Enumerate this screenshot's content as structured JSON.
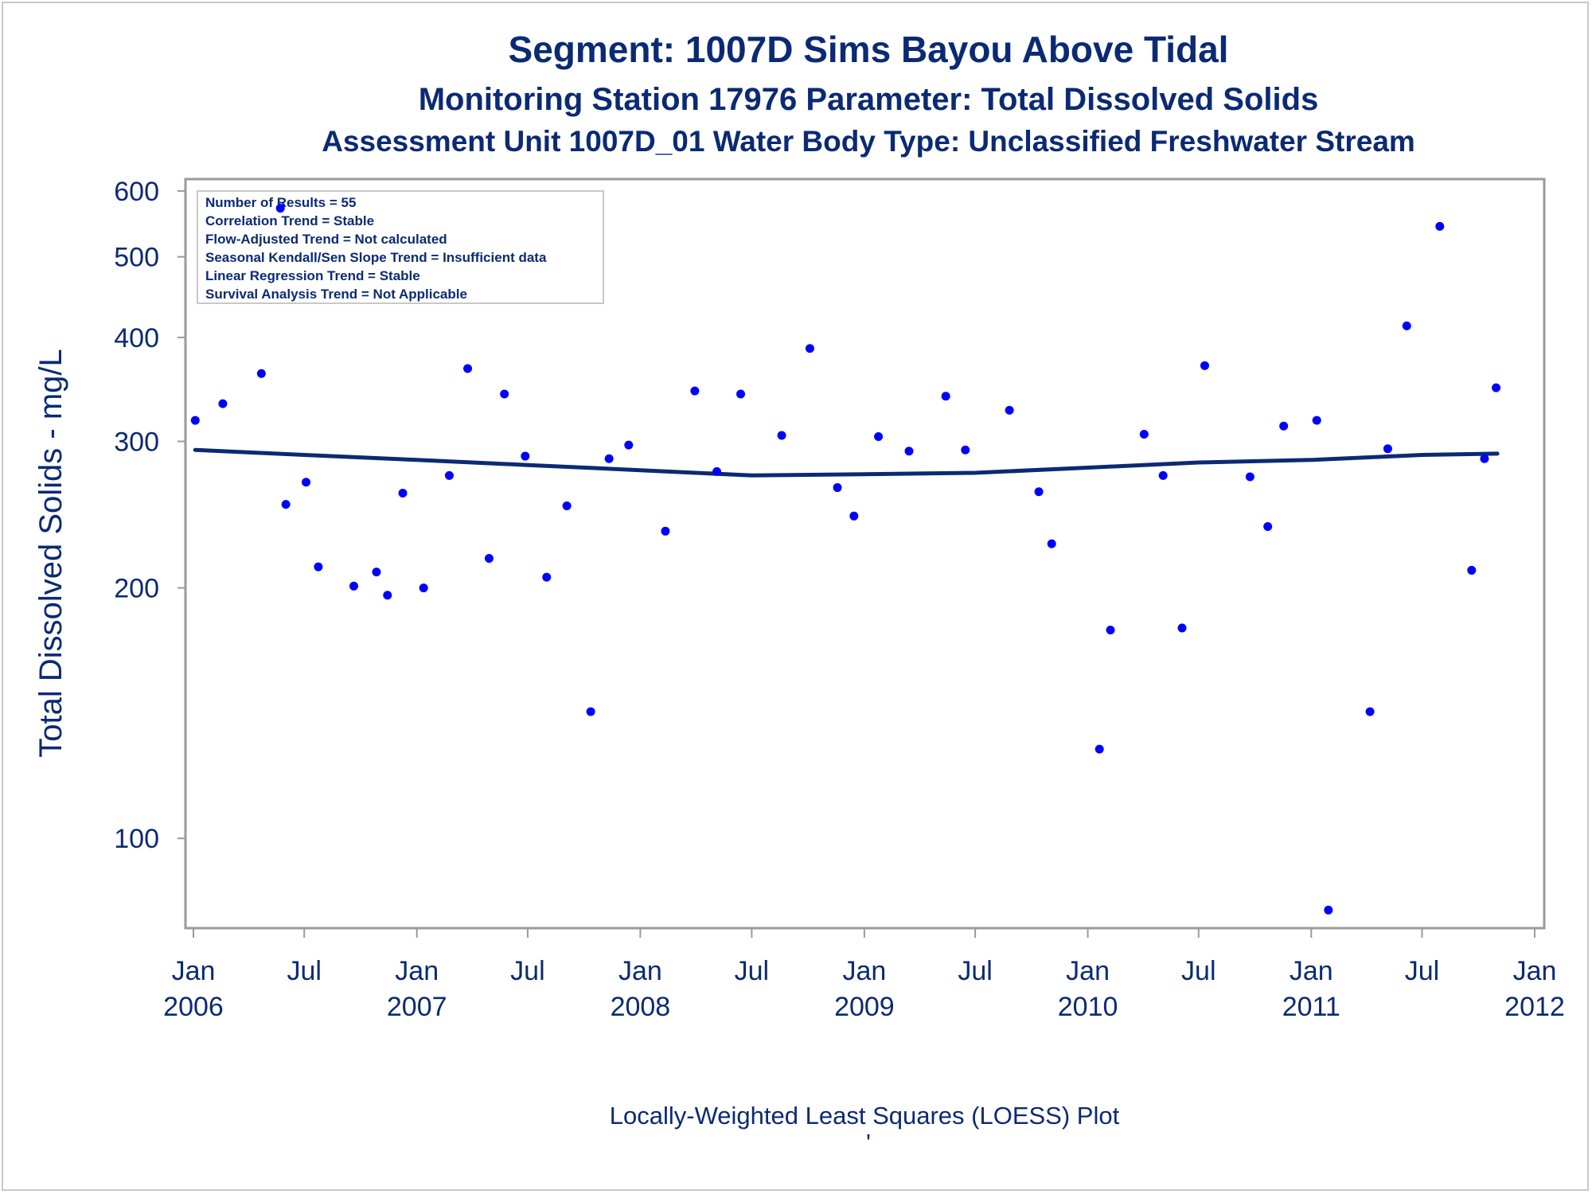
{
  "chart_data": {
    "type": "scatter",
    "title": "Segment: 1007D  Sims Bayou Above Tidal",
    "subtitle": "Monitoring Station 17976 Parameter: Total Dissolved Solids",
    "subtitle2": "Assessment Unit 1007D_01   Water Body Type: Unclassified Freshwater Stream",
    "xlabel": "",
    "ylabel": "Total Dissolved Solids - mg/L",
    "footnote": "Locally-Weighted Least Squares (LOESS) Plot",
    "footnote_mark": "'",
    "y_scale": "log",
    "ylim": [
      78,
      620
    ],
    "xlim": [
      "2006-01-01",
      "2012-01-01"
    ],
    "y_ticks": [
      100,
      200,
      300,
      400,
      500,
      600
    ],
    "x_ticks": [
      {
        "date": "2006-01-01",
        "line1": "Jan",
        "line2": "2006"
      },
      {
        "date": "2006-07-01",
        "line1": "Jul",
        "line2": ""
      },
      {
        "date": "2007-01-01",
        "line1": "Jan",
        "line2": "2007"
      },
      {
        "date": "2007-07-01",
        "line1": "Jul",
        "line2": ""
      },
      {
        "date": "2008-01-01",
        "line1": "Jan",
        "line2": "2008"
      },
      {
        "date": "2008-07-01",
        "line1": "Jul",
        "line2": ""
      },
      {
        "date": "2009-01-01",
        "line1": "Jan",
        "line2": "2009"
      },
      {
        "date": "2009-07-01",
        "line1": "Jul",
        "line2": ""
      },
      {
        "date": "2010-01-01",
        "line1": "Jan",
        "line2": "2010"
      },
      {
        "date": "2010-07-01",
        "line1": "Jul",
        "line2": ""
      },
      {
        "date": "2011-01-01",
        "line1": "Jan",
        "line2": "2011"
      },
      {
        "date": "2011-07-01",
        "line1": "Jul",
        "line2": ""
      },
      {
        "date": "2012-01-01",
        "line1": "Jan",
        "line2": "2012"
      }
    ],
    "info_box": [
      "Number of Results = 55",
      "Correlation Trend = Stable",
      "Flow-Adjusted Trend = Not calculated",
      "Seasonal Kendall/Sen Slope Trend = Insufficient data",
      "Linear Regression Trend = Stable",
      "Survival Analysis Trend = Not Applicable"
    ],
    "colors": {
      "points": "#0000ff",
      "loess": "#0b2a74",
      "text": "#0b2a74",
      "axis": "#9a9a9a"
    },
    "points": [
      {
        "x": "2006-01-04",
        "y": 318
      },
      {
        "x": "2006-02-18",
        "y": 333
      },
      {
        "x": "2006-04-22",
        "y": 362
      },
      {
        "x": "2006-05-23",
        "y": 572
      },
      {
        "x": "2006-06-01",
        "y": 252
      },
      {
        "x": "2006-07-04",
        "y": 268
      },
      {
        "x": "2006-07-24",
        "y": 212
      },
      {
        "x": "2006-09-20",
        "y": 201
      },
      {
        "x": "2006-10-27",
        "y": 209
      },
      {
        "x": "2006-11-14",
        "y": 196
      },
      {
        "x": "2006-12-09",
        "y": 260
      },
      {
        "x": "2007-01-12",
        "y": 200
      },
      {
        "x": "2007-02-23",
        "y": 273
      },
      {
        "x": "2007-03-25",
        "y": 367
      },
      {
        "x": "2007-04-29",
        "y": 217
      },
      {
        "x": "2007-05-24",
        "y": 342
      },
      {
        "x": "2007-06-27",
        "y": 288
      },
      {
        "x": "2007-08-01",
        "y": 206
      },
      {
        "x": "2007-09-03",
        "y": 251
      },
      {
        "x": "2007-10-12",
        "y": 142
      },
      {
        "x": "2007-11-11",
        "y": 286
      },
      {
        "x": "2007-12-13",
        "y": 297
      },
      {
        "x": "2008-02-11",
        "y": 234
      },
      {
        "x": "2008-03-30",
        "y": 345
      },
      {
        "x": "2008-05-05",
        "y": 276
      },
      {
        "x": "2008-06-13",
        "y": 342
      },
      {
        "x": "2008-08-19",
        "y": 305
      },
      {
        "x": "2008-10-04",
        "y": 388
      },
      {
        "x": "2008-11-18",
        "y": 264
      },
      {
        "x": "2008-12-15",
        "y": 244
      },
      {
        "x": "2009-01-24",
        "y": 304
      },
      {
        "x": "2009-03-15",
        "y": 292
      },
      {
        "x": "2009-05-14",
        "y": 340
      },
      {
        "x": "2009-06-15",
        "y": 293
      },
      {
        "x": "2009-08-26",
        "y": 327
      },
      {
        "x": "2009-10-13",
        "y": 261
      },
      {
        "x": "2009-11-03",
        "y": 226
      },
      {
        "x": "2010-01-20",
        "y": 128
      },
      {
        "x": "2010-02-07",
        "y": 178
      },
      {
        "x": "2010-04-03",
        "y": 306
      },
      {
        "x": "2010-05-04",
        "y": 273
      },
      {
        "x": "2010-06-04",
        "y": 179
      },
      {
        "x": "2010-07-11",
        "y": 370
      },
      {
        "x": "2010-09-23",
        "y": 272
      },
      {
        "x": "2010-10-22",
        "y": 237
      },
      {
        "x": "2010-11-17",
        "y": 313
      },
      {
        "x": "2011-01-10",
        "y": 318
      },
      {
        "x": "2011-01-29",
        "y": 82
      },
      {
        "x": "2011-04-07",
        "y": 142
      },
      {
        "x": "2011-05-06",
        "y": 294
      },
      {
        "x": "2011-06-06",
        "y": 413
      },
      {
        "x": "2011-07-30",
        "y": 544
      },
      {
        "x": "2011-09-20",
        "y": 210
      },
      {
        "x": "2011-10-11",
        "y": 286
      },
      {
        "x": "2011-10-30",
        "y": 348
      }
    ],
    "loess": [
      {
        "x": "2006-01-04",
        "y": 293
      },
      {
        "x": "2006-07-01",
        "y": 289
      },
      {
        "x": "2007-01-01",
        "y": 285
      },
      {
        "x": "2007-07-01",
        "y": 281
      },
      {
        "x": "2008-01-01",
        "y": 277
      },
      {
        "x": "2008-07-01",
        "y": 273
      },
      {
        "x": "2009-01-01",
        "y": 274
      },
      {
        "x": "2009-07-01",
        "y": 275
      },
      {
        "x": "2010-01-01",
        "y": 279
      },
      {
        "x": "2010-07-01",
        "y": 283
      },
      {
        "x": "2011-01-01",
        "y": 285
      },
      {
        "x": "2011-07-01",
        "y": 289
      },
      {
        "x": "2011-11-01",
        "y": 290
      }
    ]
  }
}
